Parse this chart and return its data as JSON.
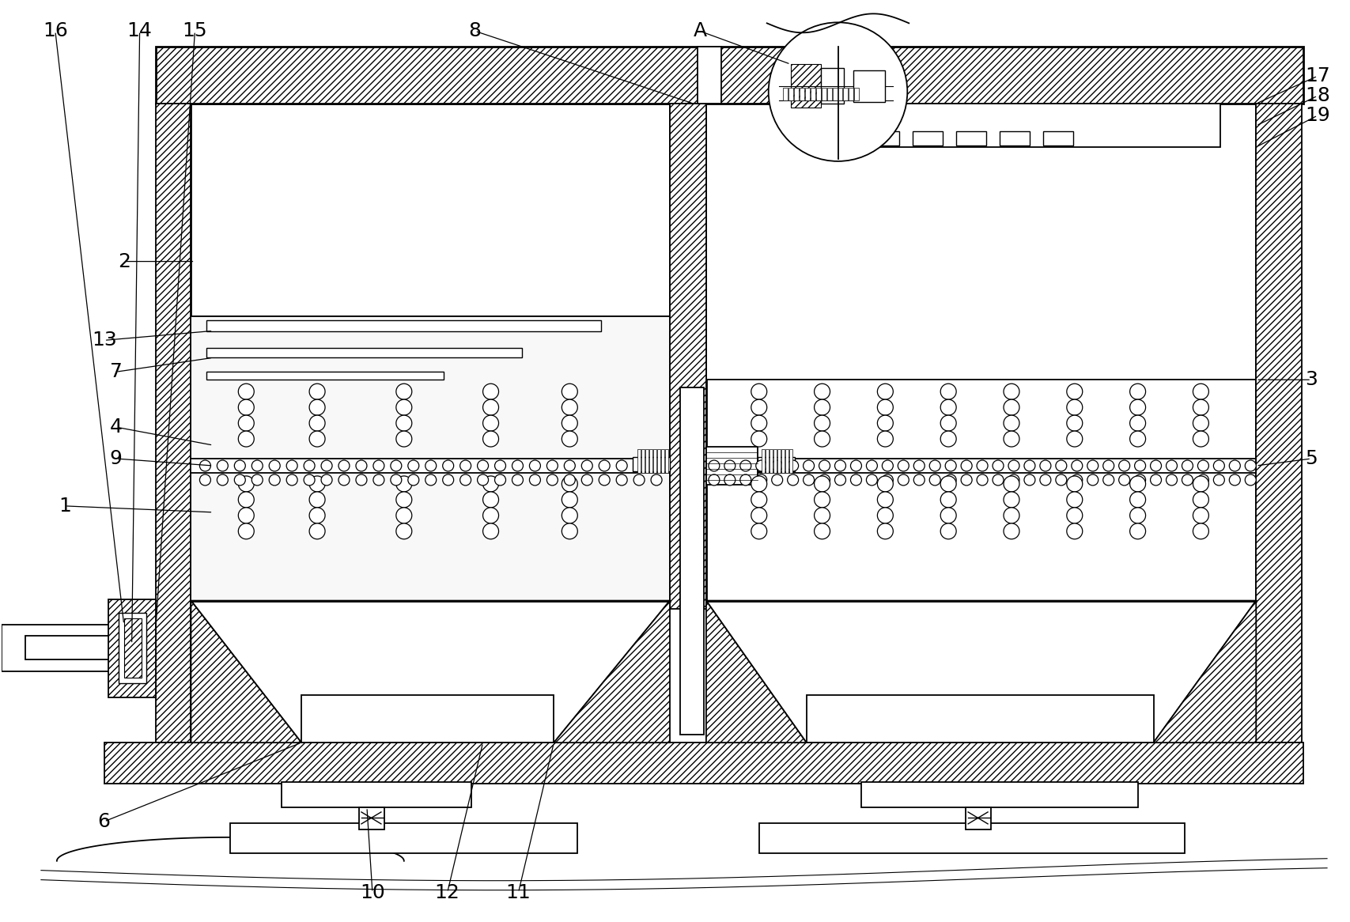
{
  "bg_color": "#ffffff",
  "fig_width": 17.07,
  "fig_height": 11.66,
  "dpi": 100,
  "wall_thickness": 0.038,
  "lw": 1.3,
  "lw_thick": 2.0
}
